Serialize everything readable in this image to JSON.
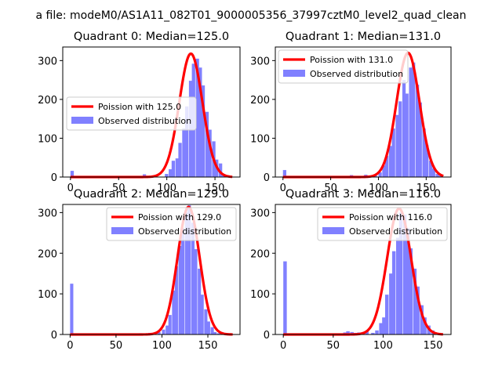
{
  "suptitle": "a file: modeM0/AS1A11_082T01_9000005356_37997cztM0_level2_quad_clean",
  "colors": {
    "observed": "#8080ff",
    "poisson": "#ff0000",
    "axis": "#000000"
  },
  "chart_data": [
    {
      "type": "bar",
      "title": "Quadrant 0: Median=125.0",
      "legend": [
        "Poission with 125.0",
        "Observed distribution"
      ],
      "legend_placement": "center-left",
      "xlim": [
        -8,
        176
      ],
      "ylim": [
        0,
        335
      ],
      "xticks": [
        "0",
        "50",
        "100",
        "150"
      ],
      "yticks": [
        "0",
        "100",
        "200",
        "300"
      ],
      "median": 125,
      "peak": 318,
      "sigma": 12,
      "bin_width": 3.5,
      "histogram": [
        [
          0,
          16
        ],
        [
          75,
          7
        ],
        [
          85,
          2
        ],
        [
          98,
          8
        ],
        [
          102,
          20
        ],
        [
          105,
          42
        ],
        [
          109,
          48
        ],
        [
          112,
          88
        ],
        [
          116,
          125
        ],
        [
          119,
          182
        ],
        [
          123,
          248
        ],
        [
          126,
          292
        ],
        [
          130,
          305
        ],
        [
          133,
          282
        ],
        [
          136,
          236
        ],
        [
          140,
          168
        ],
        [
          143,
          122
        ],
        [
          147,
          92
        ],
        [
          150,
          45
        ],
        [
          154,
          35
        ],
        [
          157,
          8
        ],
        [
          161,
          5
        ],
        [
          164,
          3
        ]
      ]
    },
    {
      "type": "bar",
      "title": "Quadrant 1: Median=131.0",
      "legend": [
        "Poission with 131.0",
        "Observed distribution"
      ],
      "legend_placement": "top-left",
      "xlim": [
        -8,
        176
      ],
      "ylim": [
        0,
        335
      ],
      "xticks": [
        "0",
        "50",
        "100",
        "150"
      ],
      "yticks": [
        "0",
        "100",
        "200",
        "300"
      ],
      "median": 131,
      "peak": 320,
      "sigma": 12,
      "bin_width": 3.5,
      "histogram": [
        [
          0,
          18
        ],
        [
          70,
          5
        ],
        [
          85,
          6
        ],
        [
          95,
          4
        ],
        [
          100,
          12
        ],
        [
          104,
          30
        ],
        [
          107,
          55
        ],
        [
          111,
          80
        ],
        [
          114,
          125
        ],
        [
          118,
          160
        ],
        [
          121,
          195
        ],
        [
          125,
          250
        ],
        [
          128,
          215
        ],
        [
          132,
          282
        ],
        [
          135,
          295
        ],
        [
          139,
          238
        ],
        [
          142,
          192
        ],
        [
          146,
          125
        ],
        [
          149,
          82
        ],
        [
          153,
          42
        ],
        [
          156,
          22
        ],
        [
          160,
          8
        ],
        [
          163,
          3
        ]
      ]
    },
    {
      "type": "bar",
      "title": "Quadrant 2: Median=129.0",
      "legend": [
        "Poission with 129.0",
        "Observed distribution"
      ],
      "legend_placement": "top-right",
      "xlim": [
        -8,
        185
      ],
      "ylim": [
        0,
        320
      ],
      "xticks": [
        "0",
        "50",
        "100",
        "150"
      ],
      "yticks": [
        "0",
        "100",
        "200",
        "300"
      ],
      "median": 129,
      "peak": 314,
      "sigma": 12,
      "bin_width": 3.5,
      "histogram": [
        [
          0,
          125
        ],
        [
          75,
          3
        ],
        [
          85,
          4
        ],
        [
          95,
          6
        ],
        [
          100,
          12
        ],
        [
          104,
          22
        ],
        [
          107,
          48
        ],
        [
          111,
          108
        ],
        [
          114,
          168
        ],
        [
          118,
          218
        ],
        [
          121,
          262
        ],
        [
          125,
          300
        ],
        [
          128,
          318
        ],
        [
          132,
          275
        ],
        [
          135,
          210
        ],
        [
          139,
          162
        ],
        [
          142,
          98
        ],
        [
          146,
          62
        ],
        [
          149,
          32
        ],
        [
          153,
          18
        ],
        [
          156,
          6
        ],
        [
          160,
          3
        ],
        [
          170,
          2
        ]
      ]
    },
    {
      "type": "bar",
      "title": "Quadrant 3: Median=116.0",
      "legend": [
        "Poission with 116.0",
        "Observed distribution"
      ],
      "legend_placement": "top-right",
      "xlim": [
        -8,
        168
      ],
      "ylim": [
        0,
        320
      ],
      "xticks": [
        "0",
        "50",
        "100",
        "150"
      ],
      "yticks": [
        "0",
        "100",
        "200",
        "300"
      ],
      "median": 116,
      "peak": 310,
      "sigma": 12,
      "bin_width": 3.5,
      "histogram": [
        [
          0,
          180
        ],
        [
          60,
          5
        ],
        [
          63,
          8
        ],
        [
          67,
          6
        ],
        [
          70,
          4
        ],
        [
          74,
          5
        ],
        [
          78,
          3
        ],
        [
          82,
          8
        ],
        [
          88,
          4
        ],
        [
          92,
          10
        ],
        [
          96,
          28
        ],
        [
          99,
          42
        ],
        [
          102,
          98
        ],
        [
          106,
          150
        ],
        [
          109,
          205
        ],
        [
          113,
          238
        ],
        [
          116,
          300
        ],
        [
          120,
          295
        ],
        [
          123,
          262
        ],
        [
          126,
          212
        ],
        [
          130,
          162
        ],
        [
          133,
          118
        ],
        [
          137,
          72
        ],
        [
          140,
          42
        ],
        [
          144,
          22
        ],
        [
          148,
          10
        ],
        [
          151,
          4
        ],
        [
          155,
          2
        ]
      ]
    }
  ]
}
